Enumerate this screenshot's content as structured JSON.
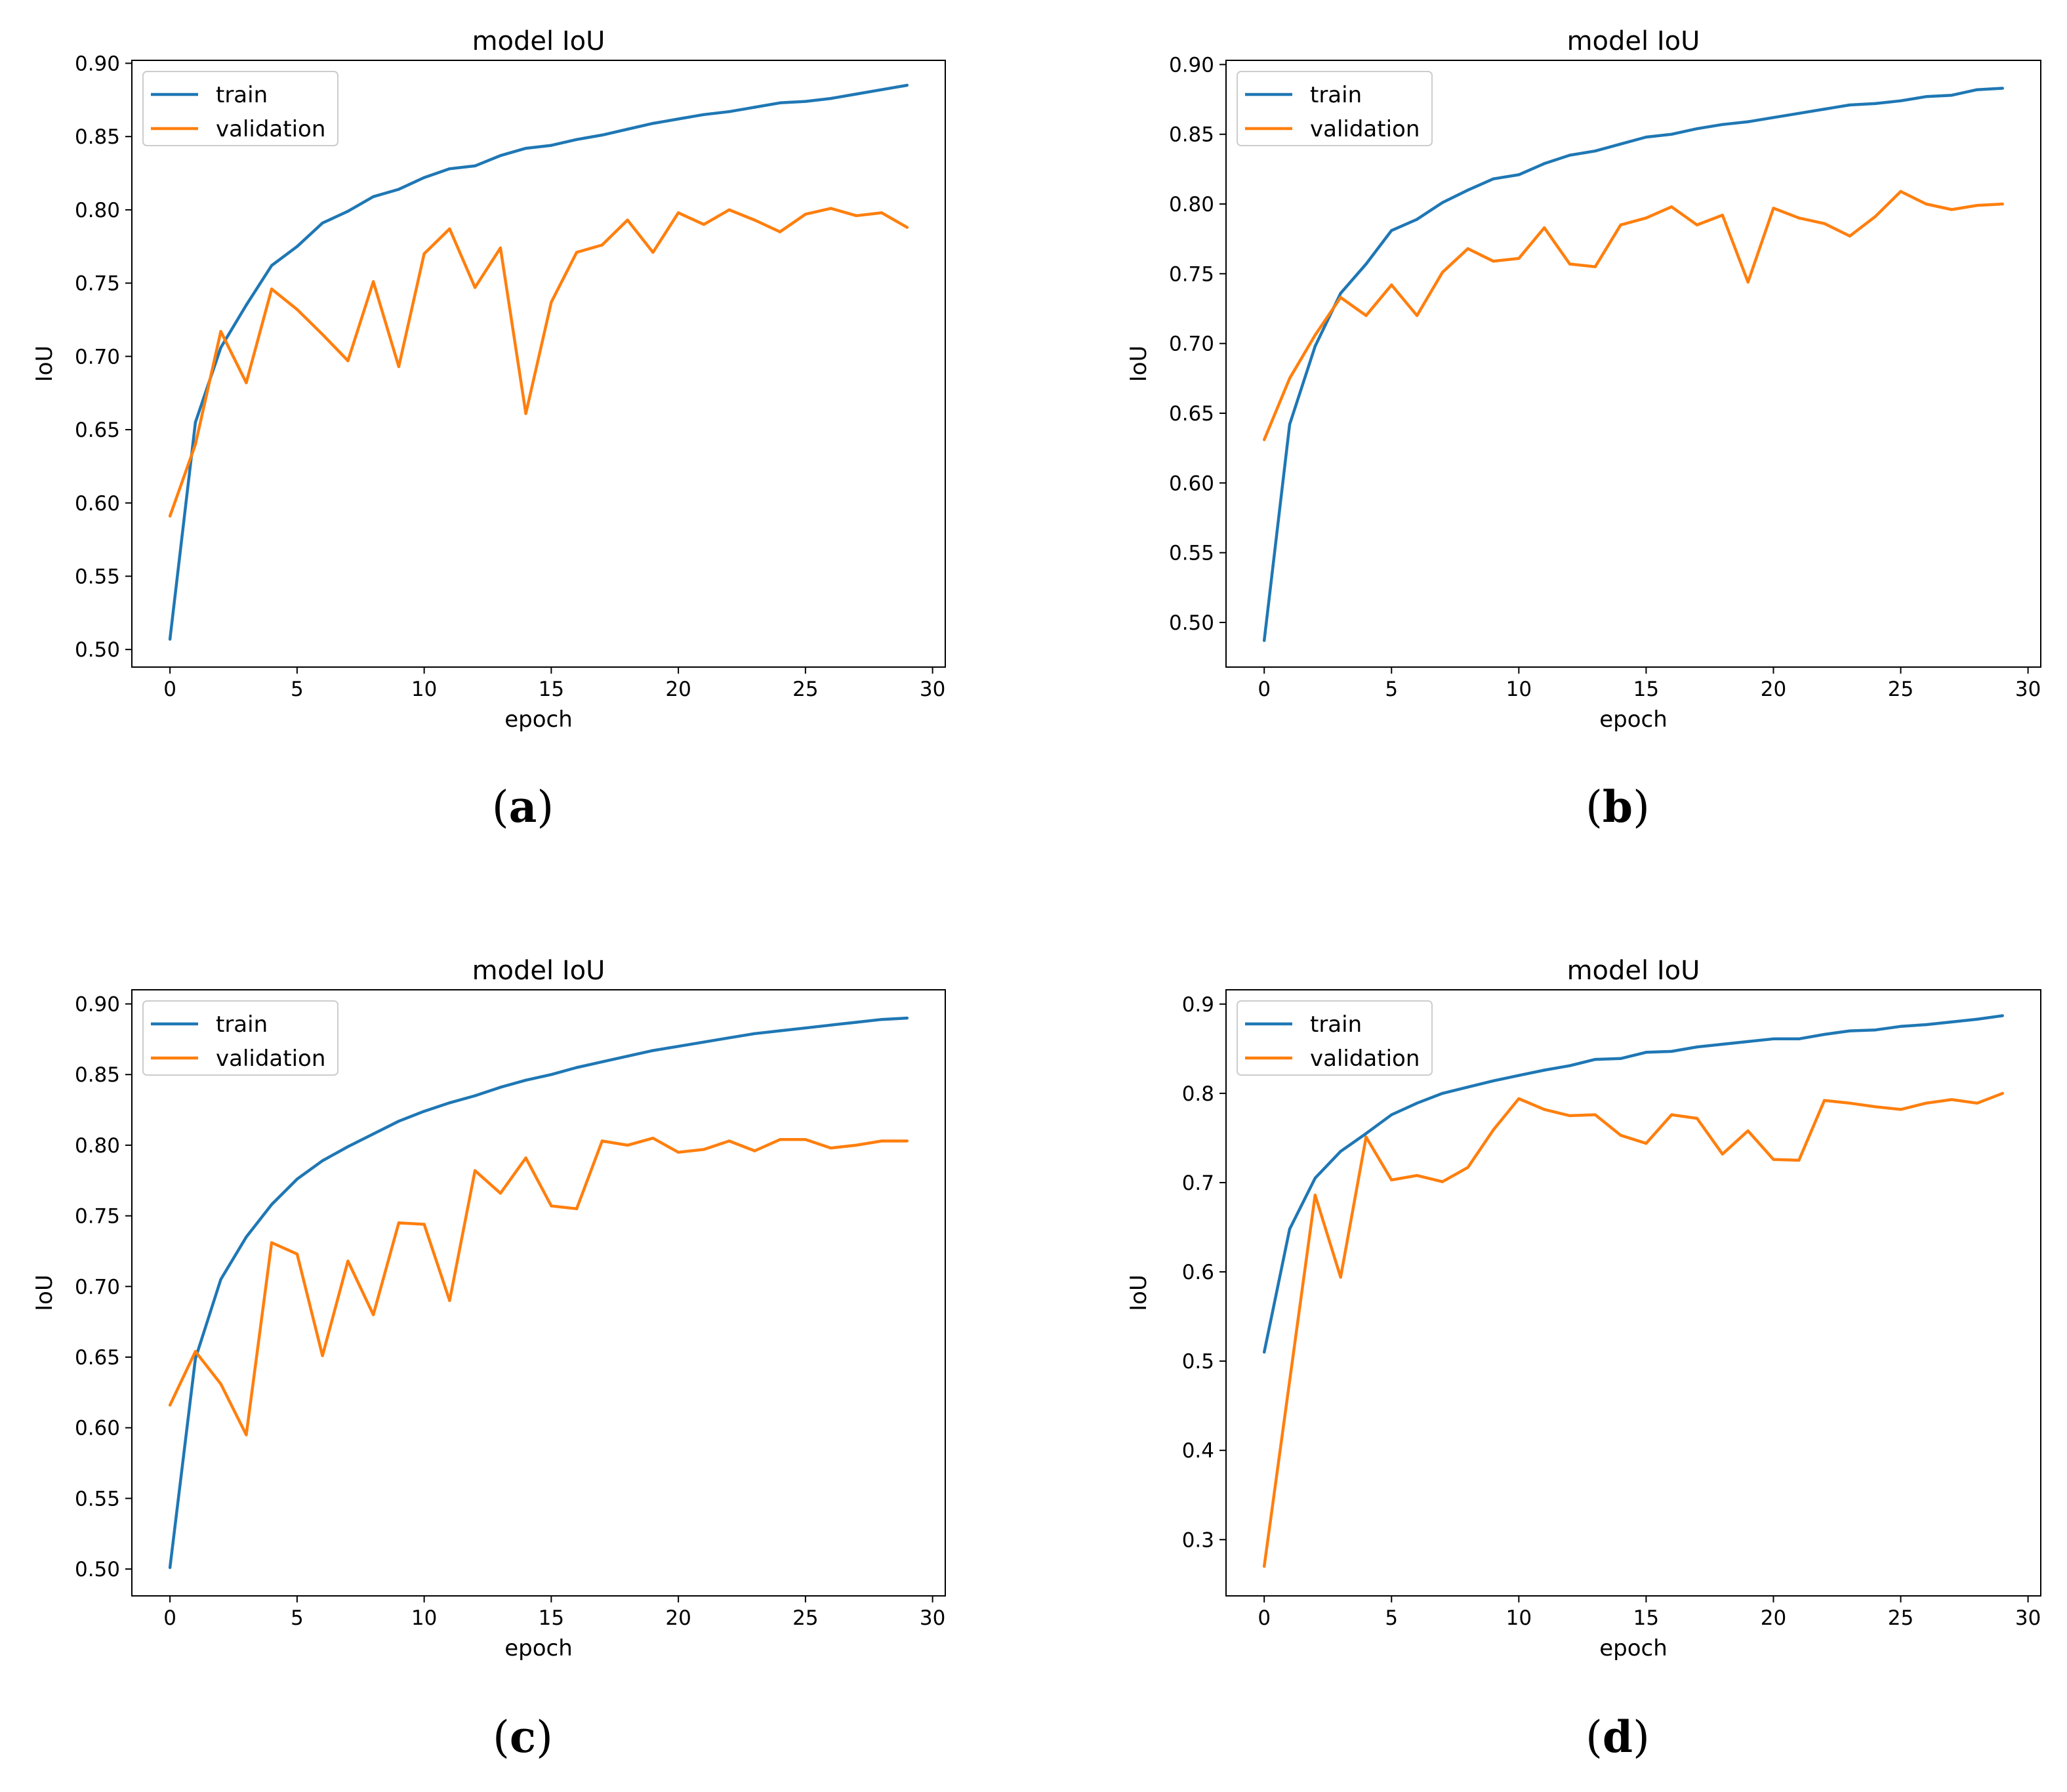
{
  "colors": {
    "train": "#1f77b4",
    "validation": "#ff7f0e"
  },
  "chart_data": [
    {
      "panel": "a",
      "type": "line",
      "title": "model IoU",
      "xlabel": "epoch",
      "ylabel": "IoU",
      "xlim": [
        -1.5,
        30.5
      ],
      "ylim": [
        0.488,
        0.902
      ],
      "xticks": [
        0,
        5,
        10,
        15,
        20,
        25,
        30
      ],
      "xtick_labels": [
        "0",
        "5",
        "10",
        "15",
        "20",
        "25",
        "30"
      ],
      "yticks": [
        0.5,
        0.55,
        0.6,
        0.65,
        0.7,
        0.75,
        0.8,
        0.85,
        0.9
      ],
      "ytick_labels": [
        "0.50",
        "0.55",
        "0.60",
        "0.65",
        "0.70",
        "0.75",
        "0.80",
        "0.85",
        "0.90"
      ],
      "legend": "upper-left",
      "x": [
        0,
        1,
        2,
        3,
        4,
        5,
        6,
        7,
        8,
        9,
        10,
        11,
        12,
        13,
        14,
        15,
        16,
        17,
        18,
        19,
        20,
        21,
        22,
        23,
        24,
        25,
        26,
        27,
        28,
        29
      ],
      "series": [
        {
          "name": "train",
          "values": [
            0.507,
            0.655,
            0.706,
            0.735,
            0.762,
            0.775,
            0.791,
            0.799,
            0.809,
            0.814,
            0.822,
            0.828,
            0.83,
            0.837,
            0.842,
            0.844,
            0.848,
            0.851,
            0.855,
            0.859,
            0.862,
            0.865,
            0.867,
            0.87,
            0.873,
            0.874,
            0.876,
            0.879,
            0.882,
            0.885
          ]
        },
        {
          "name": "validation",
          "values": [
            0.591,
            0.64,
            0.717,
            0.682,
            0.746,
            0.732,
            0.715,
            0.697,
            0.751,
            0.693,
            0.77,
            0.787,
            0.747,
            0.774,
            0.661,
            0.737,
            0.771,
            0.776,
            0.793,
            0.771,
            0.798,
            0.79,
            0.8,
            0.793,
            0.785,
            0.797,
            0.801,
            0.796,
            0.798,
            0.788
          ]
        }
      ],
      "caption_letter": "a"
    },
    {
      "panel": "b",
      "type": "line",
      "title": "model IoU",
      "xlabel": "epoch",
      "ylabel": "IoU",
      "xlim": [
        -1.5,
        30.5
      ],
      "ylim": [
        0.468,
        0.903
      ],
      "xticks": [
        0,
        5,
        10,
        15,
        20,
        25,
        30
      ],
      "xtick_labels": [
        "0",
        "5",
        "10",
        "15",
        "20",
        "25",
        "30"
      ],
      "yticks": [
        0.5,
        0.55,
        0.6,
        0.65,
        0.7,
        0.75,
        0.8,
        0.85,
        0.9
      ],
      "ytick_labels": [
        "0.50",
        "0.55",
        "0.60",
        "0.65",
        "0.70",
        "0.75",
        "0.80",
        "0.85",
        "0.90"
      ],
      "legend": "upper-left",
      "x": [
        0,
        1,
        2,
        3,
        4,
        5,
        6,
        7,
        8,
        9,
        10,
        11,
        12,
        13,
        14,
        15,
        16,
        17,
        18,
        19,
        20,
        21,
        22,
        23,
        24,
        25,
        26,
        27,
        28,
        29
      ],
      "series": [
        {
          "name": "train",
          "values": [
            0.487,
            0.642,
            0.698,
            0.736,
            0.757,
            0.781,
            0.789,
            0.801,
            0.81,
            0.818,
            0.821,
            0.829,
            0.835,
            0.838,
            0.843,
            0.848,
            0.85,
            0.854,
            0.857,
            0.859,
            0.862,
            0.865,
            0.868,
            0.871,
            0.872,
            0.874,
            0.877,
            0.878,
            0.882,
            0.883
          ]
        },
        {
          "name": "validation",
          "values": [
            0.631,
            0.675,
            0.706,
            0.733,
            0.72,
            0.742,
            0.72,
            0.751,
            0.768,
            0.759,
            0.761,
            0.783,
            0.757,
            0.755,
            0.785,
            0.79,
            0.798,
            0.785,
            0.792,
            0.744,
            0.797,
            0.79,
            0.786,
            0.777,
            0.791,
            0.809,
            0.8,
            0.796,
            0.799,
            0.8
          ]
        }
      ],
      "caption_letter": "b"
    },
    {
      "panel": "c",
      "type": "line",
      "title": "model IoU",
      "xlabel": "epoch",
      "ylabel": "IoU",
      "xlim": [
        -1.5,
        30.5
      ],
      "ylim": [
        0.481,
        0.91
      ],
      "xticks": [
        0,
        5,
        10,
        15,
        20,
        25,
        30
      ],
      "xtick_labels": [
        "0",
        "5",
        "10",
        "15",
        "20",
        "25",
        "30"
      ],
      "yticks": [
        0.5,
        0.55,
        0.6,
        0.65,
        0.7,
        0.75,
        0.8,
        0.85,
        0.9
      ],
      "ytick_labels": [
        "0.50",
        "0.55",
        "0.60",
        "0.65",
        "0.70",
        "0.75",
        "0.80",
        "0.85",
        "0.90"
      ],
      "legend": "upper-left",
      "x": [
        0,
        1,
        2,
        3,
        4,
        5,
        6,
        7,
        8,
        9,
        10,
        11,
        12,
        13,
        14,
        15,
        16,
        17,
        18,
        19,
        20,
        21,
        22,
        23,
        24,
        25,
        26,
        27,
        28,
        29
      ],
      "series": [
        {
          "name": "train",
          "values": [
            0.501,
            0.649,
            0.705,
            0.735,
            0.758,
            0.776,
            0.789,
            0.799,
            0.808,
            0.817,
            0.824,
            0.83,
            0.835,
            0.841,
            0.846,
            0.85,
            0.855,
            0.859,
            0.863,
            0.867,
            0.87,
            0.873,
            0.876,
            0.879,
            0.881,
            0.883,
            0.885,
            0.887,
            0.889,
            0.89
          ]
        },
        {
          "name": "validation",
          "values": [
            0.616,
            0.654,
            0.631,
            0.595,
            0.731,
            0.723,
            0.651,
            0.718,
            0.68,
            0.745,
            0.744,
            0.69,
            0.782,
            0.766,
            0.791,
            0.757,
            0.755,
            0.803,
            0.8,
            0.805,
            0.795,
            0.797,
            0.803,
            0.796,
            0.804,
            0.804,
            0.798,
            0.8,
            0.803,
            0.803
          ]
        }
      ],
      "caption_letter": "c"
    },
    {
      "panel": "d",
      "type": "line",
      "title": "model IoU",
      "xlabel": "epoch",
      "ylabel": "IoU",
      "xlim": [
        -1.5,
        30.5
      ],
      "ylim": [
        0.237,
        0.916
      ],
      "xticks": [
        0,
        5,
        10,
        15,
        20,
        25,
        30
      ],
      "xtick_labels": [
        "0",
        "5",
        "10",
        "15",
        "20",
        "25",
        "30"
      ],
      "yticks": [
        0.3,
        0.4,
        0.5,
        0.6,
        0.7,
        0.8,
        0.9
      ],
      "ytick_labels": [
        "0.3",
        "0.4",
        "0.5",
        "0.6",
        "0.7",
        "0.8",
        "0.9"
      ],
      "legend": "upper-left",
      "x": [
        0,
        1,
        2,
        3,
        4,
        5,
        6,
        7,
        8,
        9,
        10,
        11,
        12,
        13,
        14,
        15,
        16,
        17,
        18,
        19,
        20,
        21,
        22,
        23,
        24,
        25,
        26,
        27,
        28,
        29
      ],
      "series": [
        {
          "name": "train",
          "values": [
            0.51,
            0.648,
            0.705,
            0.735,
            0.755,
            0.776,
            0.789,
            0.8,
            0.807,
            0.814,
            0.82,
            0.826,
            0.831,
            0.838,
            0.839,
            0.846,
            0.847,
            0.852,
            0.855,
            0.858,
            0.861,
            0.861,
            0.866,
            0.87,
            0.871,
            0.875,
            0.877,
            0.88,
            0.883,
            0.887
          ]
        },
        {
          "name": "validation",
          "values": [
            0.27,
            0.478,
            0.686,
            0.594,
            0.751,
            0.703,
            0.708,
            0.701,
            0.717,
            0.759,
            0.794,
            0.782,
            0.775,
            0.776,
            0.753,
            0.744,
            0.776,
            0.772,
            0.732,
            0.758,
            0.726,
            0.725,
            0.792,
            0.789,
            0.785,
            0.782,
            0.789,
            0.793,
            0.789,
            0.8
          ]
        }
      ],
      "caption_letter": "d"
    }
  ]
}
